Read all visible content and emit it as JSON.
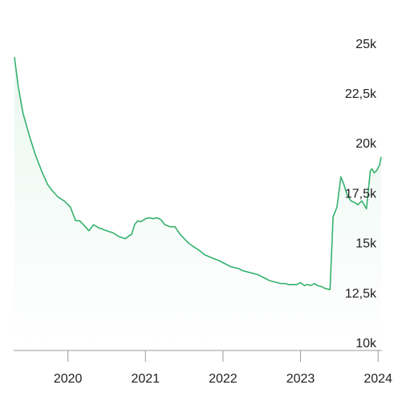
{
  "chart_data": {
    "type": "area",
    "title": "",
    "xlabel": "",
    "ylabel": "",
    "legend": "none",
    "grid": false,
    "y_axis_position": "right",
    "line_color": "#35b26e",
    "fill_color": "#35b26e",
    "xlim": [
      2019.3,
      2024.05
    ],
    "ylim": [
      10000,
      26000
    ],
    "x_ticks": [
      {
        "value": 2020,
        "label": "2020"
      },
      {
        "value": 2021,
        "label": "2021"
      },
      {
        "value": 2022,
        "label": "2022"
      },
      {
        "value": 2023,
        "label": "2023"
      },
      {
        "value": 2024,
        "label": "2024"
      }
    ],
    "y_ticks": [
      {
        "value": 25000,
        "label": "25k"
      },
      {
        "value": 22500,
        "label": "22,5k"
      },
      {
        "value": 20000,
        "label": "20k"
      },
      {
        "value": 17500,
        "label": "17,5k"
      },
      {
        "value": 15000,
        "label": "15k"
      },
      {
        "value": 12500,
        "label": "12,5k"
      },
      {
        "value": 10000,
        "label": "10k"
      }
    ],
    "series": [
      {
        "x": [
          2019.31,
          2019.36,
          2019.42,
          2019.5,
          2019.58,
          2019.66,
          2019.74,
          2019.8,
          2019.87,
          2019.95,
          2020.03,
          2020.1,
          2020.15,
          2020.2,
          2020.27,
          2020.33,
          2020.42,
          2020.44,
          2020.46,
          2020.5,
          2020.58,
          2020.66,
          2020.74,
          2020.79,
          2020.82,
          2020.86,
          2020.9,
          2020.94,
          2021.0,
          2021.05,
          2021.1,
          2021.15,
          2021.2,
          2021.25,
          2021.32,
          2021.38,
          2021.45,
          2021.5,
          2021.55,
          2021.62,
          2021.7,
          2021.76,
          2021.82,
          2021.88,
          2021.95,
          2022.0,
          2022.05,
          2022.1,
          2022.15,
          2022.2,
          2022.25,
          2022.3,
          2022.35,
          2022.4,
          2022.45,
          2022.5,
          2022.55,
          2022.6,
          2022.65,
          2022.7,
          2022.75,
          2022.8,
          2022.85,
          2022.9,
          2022.95,
          2023.0,
          2023.05,
          2023.08,
          2023.1,
          2023.13,
          2023.18,
          2023.22,
          2023.27,
          2023.32,
          2023.38,
          2023.42,
          2023.44,
          2023.47,
          2023.52,
          2023.56,
          2023.6,
          2023.65,
          2023.7,
          2023.74,
          2023.79,
          2023.85,
          2023.9,
          2023.92,
          2023.95,
          2023.98,
          2024.02,
          2024.04
        ],
        "y": [
          24300,
          22800,
          21500,
          20400,
          19400,
          18600,
          17900,
          17600,
          17300,
          17100,
          16800,
          16100,
          16100,
          15900,
          15600,
          15900,
          15700,
          15700,
          15650,
          15600,
          15500,
          15300,
          15200,
          15350,
          15400,
          15900,
          16100,
          16050,
          16200,
          16250,
          16200,
          16250,
          16150,
          15900,
          15800,
          15800,
          15400,
          15200,
          15000,
          14800,
          14600,
          14400,
          14300,
          14200,
          14100,
          14000,
          13900,
          13800,
          13750,
          13700,
          13600,
          13550,
          13500,
          13450,
          13400,
          13300,
          13200,
          13100,
          13050,
          13000,
          12950,
          12950,
          12900,
          12900,
          12900,
          13000,
          12850,
          12900,
          12900,
          12850,
          12950,
          12850,
          12800,
          12700,
          12650,
          16300,
          16500,
          16800,
          18300,
          17900,
          17400,
          17100,
          17000,
          16900,
          17100,
          16700,
          18600,
          18700,
          18500,
          18600,
          18900,
          19300
        ]
      }
    ]
  }
}
